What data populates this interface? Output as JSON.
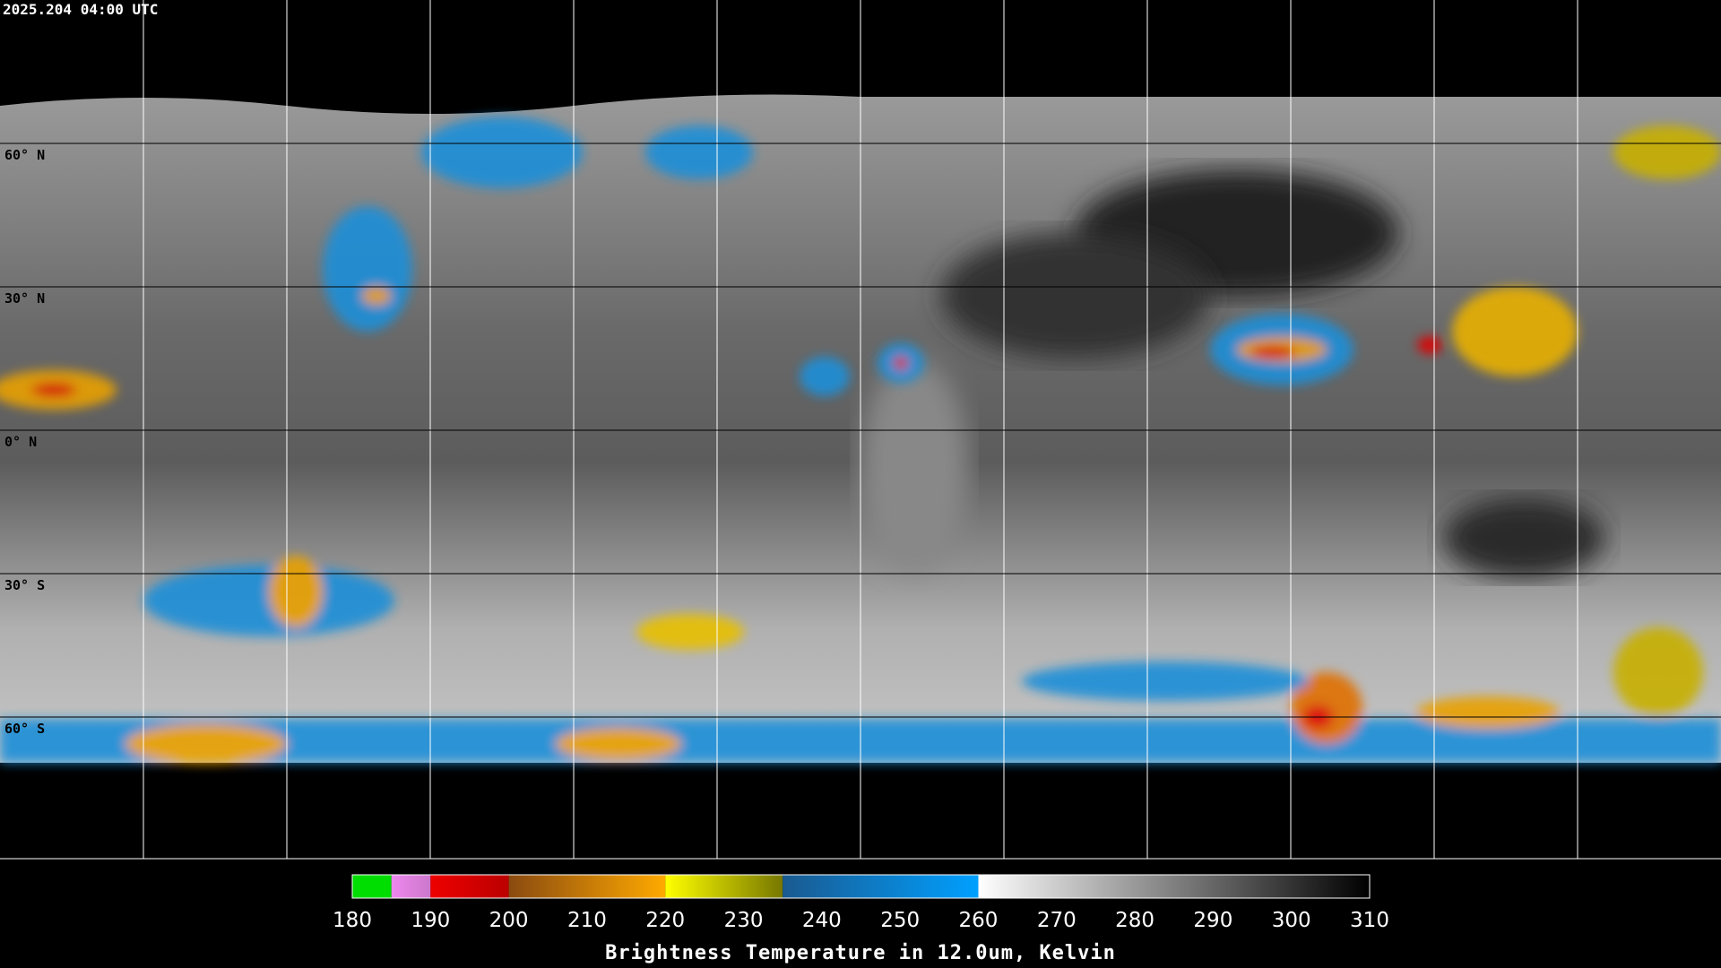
{
  "header": {
    "timestamp": "2025.204 04:00 UTC"
  },
  "latitude_labels": [
    "60° N",
    "30° N",
    "0° N",
    "30° S",
    "60° S"
  ],
  "colorbar": {
    "range": [
      180,
      310
    ],
    "ticks": [
      180,
      190,
      200,
      210,
      220,
      230,
      240,
      250,
      260,
      270,
      280,
      290,
      300,
      310
    ],
    "label": "Brightness Temperature in 12.0um, Kelvin",
    "segments": [
      {
        "from": 180,
        "to": 185,
        "color": "#00dd00",
        "color_end": "#00dd00"
      },
      {
        "from": 185,
        "to": 190,
        "color": "#ee88ee",
        "color_end": "#cc77cc"
      },
      {
        "from": 190,
        "to": 200,
        "color": "#ee0000",
        "color_end": "#bb0000"
      },
      {
        "from": 200,
        "to": 220,
        "color": "#8a4a10",
        "color_end": "#ffaa00"
      },
      {
        "from": 220,
        "to": 235,
        "color": "#ffff00",
        "color_end": "#777700"
      },
      {
        "from": 235,
        "to": 260,
        "color": "#1a5a90",
        "color_end": "#00a0ff"
      },
      {
        "from": 260,
        "to": 310,
        "color": "#ffffff",
        "color_end": "#000000"
      }
    ]
  }
}
